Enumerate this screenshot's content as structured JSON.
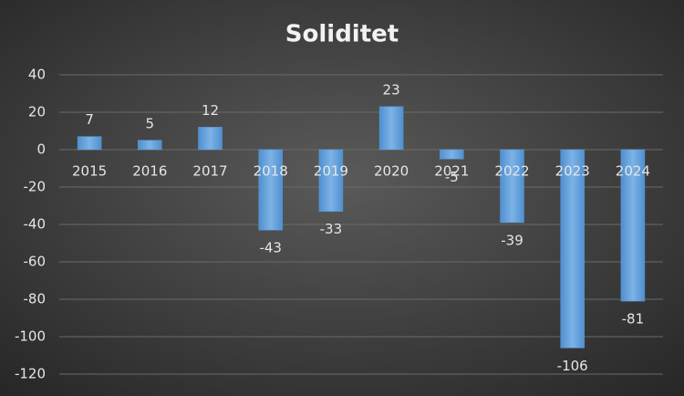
{
  "chart_data": {
    "type": "bar",
    "title": "Soliditet",
    "categories": [
      "2015",
      "2016",
      "2017",
      "2018",
      "2019",
      "2020",
      "2021",
      "2022",
      "2023",
      "2024"
    ],
    "values": [
      7,
      5,
      12,
      -43,
      -33,
      23,
      -5,
      -39,
      -106,
      -81
    ],
    "color": "#5b9bd5",
    "ylim": [
      -120,
      40
    ],
    "yticks": [
      -120,
      -100,
      -80,
      -60,
      -40,
      -20,
      0,
      20,
      40
    ],
    "grid": true
  }
}
